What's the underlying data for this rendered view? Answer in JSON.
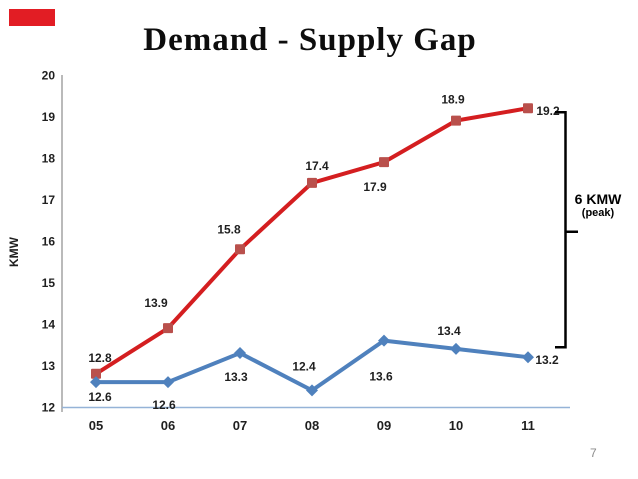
{
  "slide": {
    "title": "Demand - Supply Gap",
    "page_number": "7",
    "accent_bar_color": "#E21D24"
  },
  "axis": {
    "ylabel": "KMW"
  },
  "annotation": {
    "line1": "6 KMW",
    "line2": "(peak)"
  },
  "chart_data": {
    "type": "line",
    "title": "Demand - Supply Gap",
    "xlabel": "",
    "ylabel": "KMW",
    "categories": [
      "05",
      "06",
      "07",
      "08",
      "09",
      "10",
      "11"
    ],
    "ylim": [
      12,
      20
    ],
    "y_ticks": [
      12,
      13,
      14,
      15,
      16,
      17,
      18,
      19,
      20
    ],
    "grid": false,
    "legend_position": "none",
    "colors": {
      "demand_line": "#D41E20",
      "demand_marker": "#B9504C",
      "supply_line": "#4F81BD",
      "supply_marker": "#4F81BD",
      "baseline": "#95B3D7",
      "axis_line": "#A3A3A3",
      "label_text": "#1F1F1F",
      "bracket": "#000000",
      "page_number": "#8A8A8A"
    },
    "series": [
      {
        "name": "demand",
        "marker": "square",
        "values": [
          12.8,
          13.9,
          15.8,
          17.4,
          17.9,
          18.9,
          19.2
        ],
        "label_dx": [
          4,
          -12,
          -11,
          5,
          -9,
          -3,
          20
        ],
        "label_dy": [
          -16,
          -25,
          -20,
          -17,
          25,
          -21,
          3
        ]
      },
      {
        "name": "supply",
        "marker": "diamond",
        "values": [
          12.6,
          12.6,
          13.3,
          12.4,
          13.6,
          13.4,
          13.2
        ],
        "label_dx": [
          4,
          -4,
          -4,
          -8,
          -3,
          -7,
          19
        ],
        "label_dy": [
          15,
          23,
          24,
          -24,
          36,
          -18,
          3
        ]
      }
    ],
    "annotation_bracket": {
      "label": "6 KMW (peak)",
      "from_value": 19.2,
      "to_value": 13.2
    }
  }
}
